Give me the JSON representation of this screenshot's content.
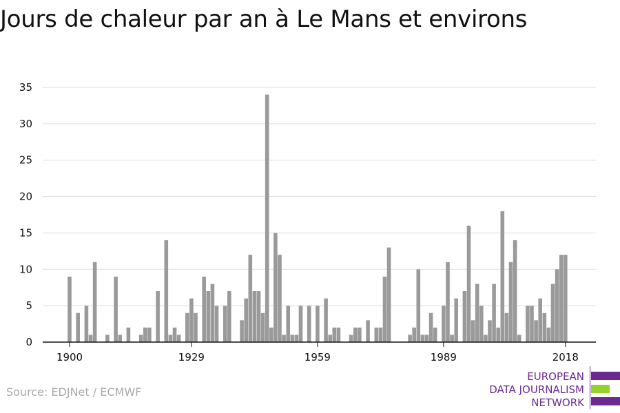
{
  "title": "Jours de chaleur par an à Le Mans et environs",
  "source": "Source: EDJNet / ECMWF",
  "logo": {
    "lines": [
      "EUROPEAN",
      "DATA JOURNALISM",
      "NETWORK"
    ],
    "colors": {
      "text": "#6c2a91",
      "bar_primary": "#6c2a91",
      "bar_accent": "#94d32a"
    }
  },
  "colors": {
    "bar": "#9a9a9a",
    "grid": "#dddddd",
    "axis": "#111111"
  },
  "chart_data": {
    "type": "bar",
    "title": "Jours de chaleur par an à Le Mans et environs",
    "xlabel": "",
    "ylabel": "",
    "ylim": [
      0,
      35
    ],
    "yticks": [
      0,
      5,
      10,
      15,
      20,
      25,
      30,
      35
    ],
    "xticks": [
      1900,
      1929,
      1959,
      1989,
      2018
    ],
    "grid": true,
    "x": [
      1900,
      1901,
      1902,
      1903,
      1904,
      1905,
      1906,
      1907,
      1908,
      1909,
      1910,
      1911,
      1912,
      1913,
      1914,
      1915,
      1916,
      1917,
      1918,
      1919,
      1920,
      1921,
      1922,
      1923,
      1924,
      1925,
      1926,
      1927,
      1928,
      1929,
      1930,
      1931,
      1932,
      1933,
      1934,
      1935,
      1936,
      1937,
      1938,
      1939,
      1940,
      1941,
      1942,
      1943,
      1944,
      1945,
      1946,
      1947,
      1948,
      1949,
      1950,
      1951,
      1952,
      1953,
      1954,
      1955,
      1956,
      1957,
      1958,
      1959,
      1960,
      1961,
      1962,
      1963,
      1964,
      1965,
      1966,
      1967,
      1968,
      1969,
      1970,
      1971,
      1972,
      1973,
      1974,
      1975,
      1976,
      1977,
      1978,
      1979,
      1980,
      1981,
      1982,
      1983,
      1984,
      1985,
      1986,
      1987,
      1988,
      1989,
      1990,
      1991,
      1992,
      1993,
      1994,
      1995,
      1996,
      1997,
      1998,
      1999,
      2000,
      2001,
      2002,
      2003,
      2004,
      2005,
      2006,
      2007,
      2008,
      2009,
      2010,
      2011,
      2012,
      2013,
      2014,
      2015,
      2016,
      2017,
      2018,
      2019
    ],
    "values": [
      9,
      0,
      4,
      0,
      5,
      1,
      11,
      0,
      0,
      1,
      0,
      9,
      1,
      0,
      2,
      0,
      0,
      1,
      2,
      2,
      0,
      7,
      0,
      14,
      1,
      2,
      1,
      0,
      4,
      6,
      4,
      0,
      9,
      7,
      8,
      5,
      0,
      5,
      7,
      0,
      0,
      3,
      6,
      12,
      7,
      7,
      4,
      34,
      2,
      15,
      12,
      1,
      5,
      1,
      1,
      5,
      0,
      5,
      0,
      5,
      0,
      6,
      1,
      2,
      2,
      0,
      0,
      1,
      2,
      2,
      0,
      3,
      0,
      2,
      2,
      9,
      13,
      0,
      0,
      0,
      0,
      1,
      2,
      10,
      1,
      1,
      4,
      2,
      0,
      5,
      11,
      1,
      6,
      0,
      7,
      16,
      3,
      8,
      5,
      1,
      3,
      8,
      2,
      18,
      4,
      11,
      14,
      1,
      0,
      5,
      5,
      3,
      6,
      4,
      2,
      8,
      10,
      12,
      12,
      0
    ]
  }
}
